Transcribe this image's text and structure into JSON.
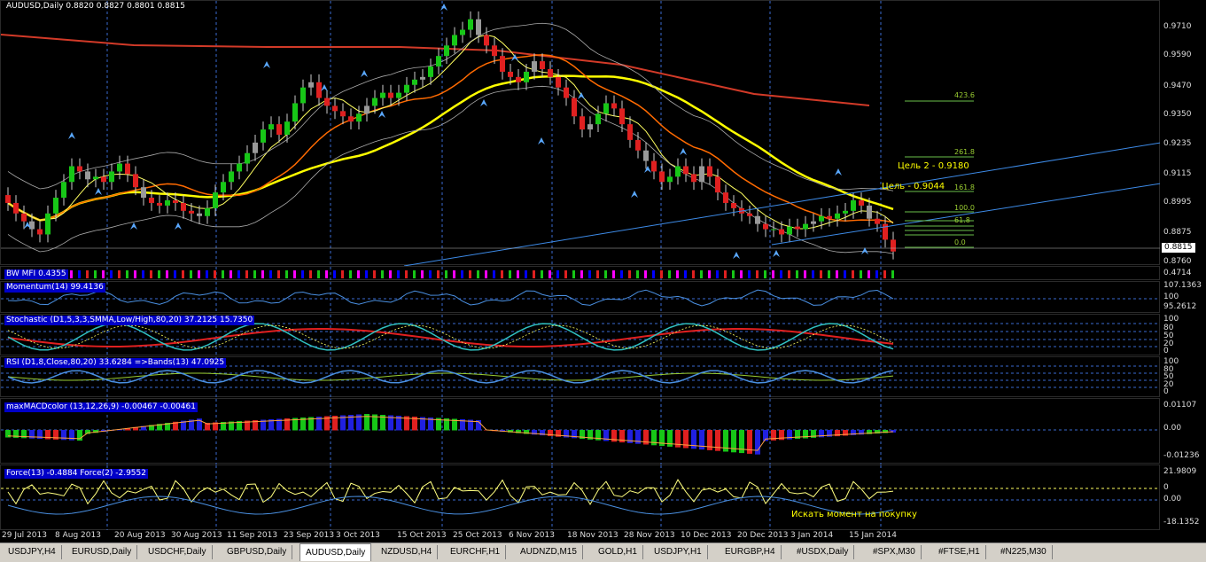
{
  "main": {
    "label": "AUDUSD,Daily  0.8820 0.8827 0.8801 0.8815",
    "price_ticks": [
      "0.9710",
      "0.9590",
      "0.9470",
      "0.9350",
      "0.9235",
      "0.9115",
      "0.8995",
      "0.8875",
      "0.8760"
    ],
    "current_price": "0.8815",
    "targets": [
      "Цель 2 - 0.9180",
      "Цель - 0.9044"
    ],
    "fib_levels": [
      "423.6",
      "261.8",
      "161.8",
      "100.0",
      "61.8",
      "0.0"
    ]
  },
  "mfi": {
    "label": "BW MFI 0.4355",
    "axis": "0.4714"
  },
  "momentum": {
    "label": "Momentum(14) 99.4136",
    "ticks": [
      "107.1363",
      "100",
      "95.2612"
    ]
  },
  "stochastic": {
    "label": "Stochastic (D1,5,3,3,SMMA,Low/High,80,20) 37.2125 15.7350",
    "ticks": [
      "100",
      "80",
      "50",
      "20",
      "0"
    ]
  },
  "rsi": {
    "label": "RSI (D1,8,Close,80,20) 33.6284  =>Bands(13) 47.0925",
    "ticks": [
      "100",
      "80",
      "50",
      "20",
      "0"
    ]
  },
  "macd": {
    "label": "maxMACDcolor (13,12,26,9) -0.00467 -0.00461",
    "ticks": [
      "0.01107",
      "0.00",
      "-0.01236"
    ]
  },
  "force": {
    "label": "Force(13) -0.4884  Force(2) -2.9552",
    "ticks": [
      "21.9809",
      "0",
      "0.00",
      "-18.1352"
    ],
    "note": "Искать момент на покупку"
  },
  "time_labels": [
    "29 Jul 2013",
    "8 Aug 2013",
    "20 Aug 2013",
    "30 Aug 2013",
    "11 Sep 2013",
    "23 Sep 2013",
    "3 Oct 2013",
    "15 Oct 2013",
    "25 Oct 2013",
    "6 Nov 2013",
    "18 Nov 2013",
    "28 Nov 2013",
    "10 Dec 2013",
    "20 Dec 2013",
    "3 Jan 2014",
    "15 Jan 2014"
  ],
  "tabs": [
    "USDJPY,H4",
    "EURUSD,Daily",
    "USDCHF,Daily",
    "GBPUSD,Daily",
    "AUDUSD,Daily",
    "NZDUSD,H4",
    "EURCHF,H1",
    "AUDNZD,M15",
    "GOLD,H1",
    "USDJPY,H1",
    "EURGBP,H4",
    "#USDX,Daily",
    "#SPX,M30",
    "#FTSE,H1",
    "#N225,M30"
  ],
  "active_tab": "AUDUSD,Daily",
  "chart_data": {
    "type": "candlestick",
    "title": "AUDUSD,Daily",
    "ylim": [
      0.876,
      0.977
    ],
    "closes": [
      0.9,
      0.896,
      0.893,
      0.89,
      0.888,
      0.896,
      0.902,
      0.908,
      0.914,
      0.912,
      0.909,
      0.91,
      0.908,
      0.912,
      0.915,
      0.911,
      0.906,
      0.902,
      0.9,
      0.899,
      0.901,
      0.9,
      0.897,
      0.896,
      0.895,
      0.898,
      0.904,
      0.908,
      0.912,
      0.915,
      0.919,
      0.923,
      0.928,
      0.93,
      0.926,
      0.931,
      0.938,
      0.944,
      0.946,
      0.94,
      0.937,
      0.935,
      0.933,
      0.931,
      0.934,
      0.937,
      0.94,
      0.942,
      0.94,
      0.942,
      0.945,
      0.947,
      0.948,
      0.952,
      0.956,
      0.96,
      0.964,
      0.966,
      0.97,
      0.964,
      0.96,
      0.956,
      0.95,
      0.948,
      0.946,
      0.95,
      0.954,
      0.951,
      0.948,
      0.944,
      0.94,
      0.933,
      0.928,
      0.93,
      0.934,
      0.938,
      0.936,
      0.93,
      0.924,
      0.92,
      0.916,
      0.912,
      0.908,
      0.91,
      0.914,
      0.911,
      0.908,
      0.914,
      0.91,
      0.904,
      0.9,
      0.898,
      0.896,
      0.895,
      0.892,
      0.89,
      0.89,
      0.888,
      0.891,
      0.89,
      0.892,
      0.893,
      0.895,
      0.894,
      0.896,
      0.897,
      0.901,
      0.899,
      0.894,
      0.892,
      0.886,
      0.8815
    ]
  }
}
